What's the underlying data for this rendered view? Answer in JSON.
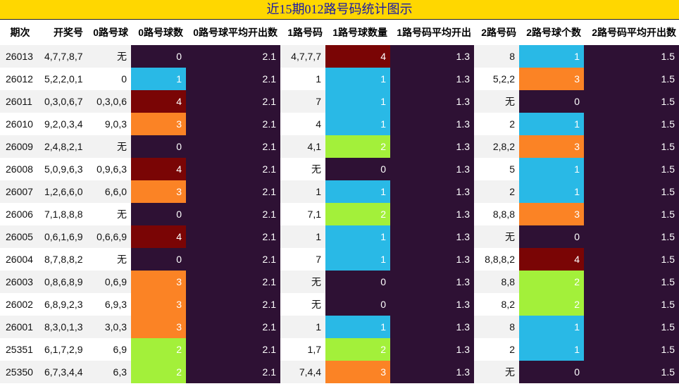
{
  "title": "近15期012路号码统计图示",
  "headers": [
    "期次",
    "开奖号",
    "0路号球",
    "0路号球数",
    "0路号球平均开出数",
    "1路号码",
    "1路号球数量",
    "1路号码平均开出",
    "2路号码",
    "2路号球个数",
    "2路号码平均开出数"
  ],
  "count_colors": {
    "0": "#2e1134",
    "1": "#29b9e6",
    "2": "#a3f03a",
    "3": "#fb8325",
    "4": "#7a0505"
  },
  "rows": [
    {
      "period": "26013",
      "draw": "4,7,7,8,7",
      "r0": "无",
      "r0n": "0",
      "r0avg": "2.1",
      "r1": "4,7,7,7",
      "r1n": "4",
      "r1avg": "1.3",
      "r2": "8",
      "r2n": "1",
      "r2avg": "1.5"
    },
    {
      "period": "26012",
      "draw": "5,2,2,0,1",
      "r0": "0",
      "r0n": "1",
      "r0avg": "2.1",
      "r1": "1",
      "r1n": "1",
      "r1avg": "1.3",
      "r2": "5,2,2",
      "r2n": "3",
      "r2avg": "1.5"
    },
    {
      "period": "26011",
      "draw": "0,3,0,6,7",
      "r0": "0,3,0,6",
      "r0n": "4",
      "r0avg": "2.1",
      "r1": "7",
      "r1n": "1",
      "r1avg": "1.3",
      "r2": "无",
      "r2n": "0",
      "r2avg": "1.5"
    },
    {
      "period": "26010",
      "draw": "9,2,0,3,4",
      "r0": "9,0,3",
      "r0n": "3",
      "r0avg": "2.1",
      "r1": "4",
      "r1n": "1",
      "r1avg": "1.3",
      "r2": "2",
      "r2n": "1",
      "r2avg": "1.5"
    },
    {
      "period": "26009",
      "draw": "2,4,8,2,1",
      "r0": "无",
      "r0n": "0",
      "r0avg": "2.1",
      "r1": "4,1",
      "r1n": "2",
      "r1avg": "1.3",
      "r2": "2,8,2",
      "r2n": "3",
      "r2avg": "1.5"
    },
    {
      "period": "26008",
      "draw": "5,0,9,6,3",
      "r0": "0,9,6,3",
      "r0n": "4",
      "r0avg": "2.1",
      "r1": "无",
      "r1n": "0",
      "r1avg": "1.3",
      "r2": "5",
      "r2n": "1",
      "r2avg": "1.5"
    },
    {
      "period": "26007",
      "draw": "1,2,6,6,0",
      "r0": "6,6,0",
      "r0n": "3",
      "r0avg": "2.1",
      "r1": "1",
      "r1n": "1",
      "r1avg": "1.3",
      "r2": "2",
      "r2n": "1",
      "r2avg": "1.5"
    },
    {
      "period": "26006",
      "draw": "7,1,8,8,8",
      "r0": "无",
      "r0n": "0",
      "r0avg": "2.1",
      "r1": "7,1",
      "r1n": "2",
      "r1avg": "1.3",
      "r2": "8,8,8",
      "r2n": "3",
      "r2avg": "1.5"
    },
    {
      "period": "26005",
      "draw": "0,6,1,6,9",
      "r0": "0,6,6,9",
      "r0n": "4",
      "r0avg": "2.1",
      "r1": "1",
      "r1n": "1",
      "r1avg": "1.3",
      "r2": "无",
      "r2n": "0",
      "r2avg": "1.5"
    },
    {
      "period": "26004",
      "draw": "8,7,8,8,2",
      "r0": "无",
      "r0n": "0",
      "r0avg": "2.1",
      "r1": "7",
      "r1n": "1",
      "r1avg": "1.3",
      "r2": "8,8,8,2",
      "r2n": "4",
      "r2avg": "1.5"
    },
    {
      "period": "26003",
      "draw": "0,8,6,8,9",
      "r0": "0,6,9",
      "r0n": "3",
      "r0avg": "2.1",
      "r1": "无",
      "r1n": "0",
      "r1avg": "1.3",
      "r2": "8,8",
      "r2n": "2",
      "r2avg": "1.5"
    },
    {
      "period": "26002",
      "draw": "6,8,9,2,3",
      "r0": "6,9,3",
      "r0n": "3",
      "r0avg": "2.1",
      "r1": "无",
      "r1n": "0",
      "r1avg": "1.3",
      "r2": "8,2",
      "r2n": "2",
      "r2avg": "1.5"
    },
    {
      "period": "26001",
      "draw": "8,3,0,1,3",
      "r0": "3,0,3",
      "r0n": "3",
      "r0avg": "2.1",
      "r1": "1",
      "r1n": "1",
      "r1avg": "1.3",
      "r2": "8",
      "r2n": "1",
      "r2avg": "1.5"
    },
    {
      "period": "25351",
      "draw": "6,1,7,2,9",
      "r0": "6,9",
      "r0n": "2",
      "r0avg": "2.1",
      "r1": "1,7",
      "r1n": "2",
      "r1avg": "1.3",
      "r2": "2",
      "r2n": "1",
      "r2avg": "1.5"
    },
    {
      "period": "25350",
      "draw": "6,7,3,4,4",
      "r0": "6,3",
      "r0n": "2",
      "r0avg": "2.1",
      "r1": "7,4,4",
      "r1n": "3",
      "r1avg": "1.3",
      "r2": "无",
      "r2n": "0",
      "r2avg": "1.5"
    }
  ]
}
